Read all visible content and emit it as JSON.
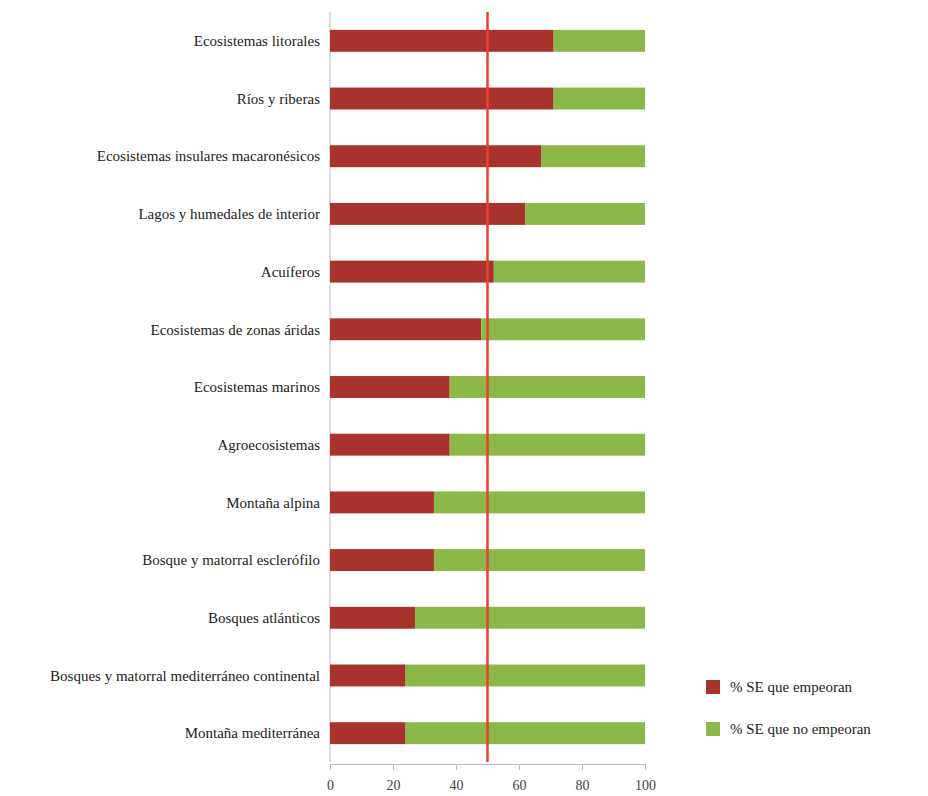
{
  "chart_data": {
    "type": "bar",
    "orientation": "horizontal",
    "stacked": true,
    "categories": [
      "Ecosistemas litorales",
      "Ríos y riberas",
      "Ecosistemas insulares macaronésicos",
      "Lagos y humedales de interior",
      "Acuíferos",
      "Ecosistemas de zonas áridas",
      "Ecosistemas marinos",
      "Agroecosistemas",
      "Montaña alpina",
      "Bosque y matorral esclerófilo",
      "Bosques atlánticos",
      "Bosques y matorral mediterráneo continental",
      "Montaña mediterránea"
    ],
    "series": [
      {
        "name": "% SE que empeoran",
        "color": "#a8332d",
        "values": [
          71,
          71,
          67,
          62,
          52,
          48,
          38,
          38,
          33,
          33,
          27,
          24,
          24
        ]
      },
      {
        "name": "% SE que no empeoran",
        "color": "#8cb84a",
        "values": [
          29,
          29,
          33,
          38,
          48,
          52,
          62,
          62,
          67,
          67,
          73,
          76,
          76
        ]
      }
    ],
    "xlim": [
      0,
      100
    ],
    "xticks": [
      0,
      20,
      40,
      60,
      80,
      100
    ],
    "reference_line": {
      "value": 50,
      "color": "#e8412c"
    },
    "grid": false,
    "legend": "right"
  }
}
